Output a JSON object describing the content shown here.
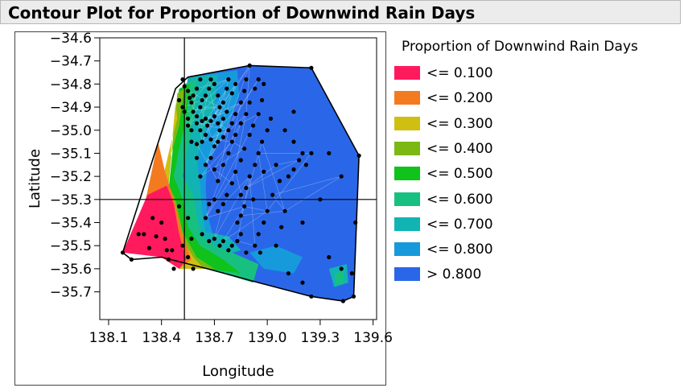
{
  "title": "Contour Plot for Proportion of Downwind Rain Days",
  "chart_data": {
    "type": "contour",
    "xlabel": "Longitude",
    "ylabel": "Latitude",
    "xlim": [
      138.05,
      139.62
    ],
    "ylim": [
      -35.82,
      -34.6
    ],
    "x_ticks": [
      "138.1",
      "138.4",
      "138.7",
      "139.0",
      "139.3",
      "139.6"
    ],
    "y_ticks": [
      "-34.6",
      "-34.7",
      "-34.8",
      "-34.9",
      "-35.0",
      "-35.1",
      "-35.2",
      "-35.3",
      "-35.4",
      "-35.5",
      "-35.6",
      "-35.7"
    ],
    "crosshair": {
      "x": 138.53,
      "y": -35.3
    },
    "legend_title": "Proportion of Downwind Rain Days",
    "legend": [
      {
        "label": "<= 0.100",
        "color": "#ff1a5e"
      },
      {
        "label": "<= 0.200",
        "color": "#f47a1f"
      },
      {
        "label": "<= 0.300",
        "color": "#cfbf12"
      },
      {
        "label": "<= 0.400",
        "color": "#7cb814"
      },
      {
        "label": "<= 0.500",
        "color": "#0fc21c"
      },
      {
        "label": "<= 0.600",
        "color": "#18c080"
      },
      {
        "label": "<= 0.700",
        "color": "#12b3b3"
      },
      {
        "label": "<= 0.800",
        "color": "#169adc"
      },
      {
        "label": "> 0.800",
        "color": "#2a67e8"
      }
    ],
    "regions": [
      {
        "level": "> 0.800",
        "polygon": [
          [
            138.55,
            -34.77
          ],
          [
            138.9,
            -34.72
          ],
          [
            139.25,
            -34.73
          ],
          [
            139.52,
            -35.11
          ],
          [
            139.49,
            -35.72
          ],
          [
            139.43,
            -35.74
          ],
          [
            139.25,
            -35.72
          ],
          [
            138.95,
            -35.66
          ],
          [
            138.66,
            -35.6
          ],
          [
            138.4,
            -35.55
          ]
        ]
      },
      {
        "level": "<= 0.800",
        "polygon": [
          [
            138.55,
            -34.77
          ],
          [
            138.83,
            -34.74
          ],
          [
            138.84,
            -34.85
          ],
          [
            138.78,
            -34.97
          ],
          [
            138.72,
            -35.06
          ],
          [
            138.66,
            -35.14
          ],
          [
            138.65,
            -35.25
          ],
          [
            138.66,
            -35.36
          ],
          [
            138.7,
            -35.48
          ],
          [
            138.5,
            -35.6
          ]
        ]
      },
      {
        "level": "<= 0.800",
        "polygon": [
          [
            138.9,
            -35.53
          ],
          [
            139.05,
            -35.5
          ],
          [
            139.2,
            -35.55
          ],
          [
            139.15,
            -35.62
          ],
          [
            138.98,
            -35.6
          ]
        ]
      },
      {
        "level": "<= 0.700",
        "polygon": [
          [
            138.55,
            -34.77
          ],
          [
            138.72,
            -34.76
          ],
          [
            138.7,
            -34.9
          ],
          [
            138.64,
            -35.02
          ],
          [
            138.6,
            -35.12
          ],
          [
            138.62,
            -35.25
          ],
          [
            138.63,
            -35.35
          ],
          [
            138.65,
            -35.44
          ],
          [
            138.78,
            -35.46
          ],
          [
            138.85,
            -35.52
          ],
          [
            138.5,
            -35.6
          ]
        ]
      },
      {
        "level": "<= 0.700",
        "polygon": [
          [
            139.35,
            -35.6
          ],
          [
            139.45,
            -35.58
          ],
          [
            139.46,
            -35.66
          ],
          [
            139.38,
            -35.68
          ]
        ]
      },
      {
        "level": "<= 0.600",
        "polygon": [
          [
            138.53,
            -34.8
          ],
          [
            138.6,
            -34.78
          ],
          [
            138.58,
            -34.95
          ],
          [
            138.55,
            -35.08
          ],
          [
            138.52,
            -35.2
          ],
          [
            138.58,
            -35.28
          ],
          [
            138.6,
            -35.37
          ],
          [
            138.62,
            -35.45
          ],
          [
            138.7,
            -35.5
          ],
          [
            138.8,
            -35.53
          ],
          [
            138.95,
            -35.58
          ],
          [
            138.92,
            -35.66
          ],
          [
            138.66,
            -35.6
          ],
          [
            138.4,
            -35.55
          ]
        ]
      },
      {
        "level": "<= 0.600",
        "polygon": [
          [
            139.38,
            -35.62
          ],
          [
            139.43,
            -35.61
          ],
          [
            139.44,
            -35.66
          ],
          [
            139.39,
            -35.67
          ]
        ]
      },
      {
        "level": "<= 0.500",
        "polygon": [
          [
            138.5,
            -34.82
          ],
          [
            138.56,
            -34.8
          ],
          [
            138.54,
            -34.95
          ],
          [
            138.5,
            -35.08
          ],
          [
            138.47,
            -35.2
          ],
          [
            138.52,
            -35.3
          ],
          [
            138.55,
            -35.42
          ],
          [
            138.62,
            -35.5
          ],
          [
            138.75,
            -35.56
          ],
          [
            138.85,
            -35.62
          ],
          [
            138.66,
            -35.6
          ],
          [
            138.4,
            -35.55
          ]
        ]
      },
      {
        "level": "<= 0.400",
        "polygon": [
          [
            138.49,
            -34.84
          ],
          [
            138.53,
            -34.82
          ],
          [
            138.5,
            -34.98
          ],
          [
            138.45,
            -35.12
          ],
          [
            138.43,
            -35.22
          ],
          [
            138.48,
            -35.3
          ],
          [
            138.52,
            -35.44
          ],
          [
            138.6,
            -35.55
          ],
          [
            138.7,
            -35.6
          ],
          [
            138.5,
            -35.6
          ],
          [
            138.4,
            -35.55
          ]
        ]
      },
      {
        "level": "<= 0.300",
        "polygon": [
          [
            138.48,
            -34.88
          ],
          [
            138.49,
            -34.95
          ],
          [
            138.44,
            -35.1
          ],
          [
            138.41,
            -35.2
          ],
          [
            138.45,
            -35.3
          ],
          [
            138.5,
            -35.45
          ],
          [
            138.58,
            -35.55
          ],
          [
            138.64,
            -35.6
          ],
          [
            138.5,
            -35.6
          ],
          [
            138.4,
            -35.55
          ]
        ]
      },
      {
        "level": "<= 0.200",
        "polygon": [
          [
            138.38,
            -35.05
          ],
          [
            138.42,
            -35.18
          ],
          [
            138.47,
            -35.3
          ],
          [
            138.52,
            -35.45
          ],
          [
            138.57,
            -35.56
          ],
          [
            138.5,
            -35.6
          ],
          [
            138.4,
            -35.55
          ],
          [
            138.25,
            -35.52
          ]
        ]
      },
      {
        "level": "<= 0.100",
        "polygon": [
          [
            138.32,
            -35.28
          ],
          [
            138.43,
            -35.24
          ],
          [
            138.47,
            -35.32
          ],
          [
            138.5,
            -35.45
          ],
          [
            138.54,
            -35.56
          ],
          [
            138.5,
            -35.6
          ],
          [
            138.4,
            -35.55
          ],
          [
            138.18,
            -35.53
          ]
        ]
      }
    ],
    "boundary": [
      [
        138.18,
        -35.53
      ],
      [
        138.48,
        -34.82
      ],
      [
        138.55,
        -34.77
      ],
      [
        138.9,
        -34.72
      ],
      [
        139.25,
        -34.73
      ],
      [
        139.52,
        -35.11
      ],
      [
        139.49,
        -35.72
      ],
      [
        139.43,
        -35.74
      ],
      [
        139.25,
        -35.72
      ],
      [
        138.95,
        -35.66
      ],
      [
        138.66,
        -35.6
      ],
      [
        138.4,
        -35.55
      ],
      [
        138.23,
        -35.56
      ]
    ],
    "points": [
      [
        138.18,
        -35.53
      ],
      [
        138.23,
        -35.56
      ],
      [
        138.27,
        -35.45
      ],
      [
        138.3,
        -35.45
      ],
      [
        138.33,
        -35.51
      ],
      [
        138.35,
        -35.38
      ],
      [
        138.37,
        -35.46
      ],
      [
        138.4,
        -35.4
      ],
      [
        138.42,
        -35.47
      ],
      [
        138.43,
        -35.52
      ],
      [
        138.44,
        -35.56
      ],
      [
        138.46,
        -35.52
      ],
      [
        138.47,
        -35.6
      ],
      [
        138.52,
        -35.5
      ],
      [
        138.55,
        -35.55
      ],
      [
        138.58,
        -35.6
      ],
      [
        138.5,
        -35.33
      ],
      [
        138.55,
        -35.38
      ],
      [
        138.57,
        -35.47
      ],
      [
        138.52,
        -34.78
      ],
      [
        138.53,
        -34.81
      ],
      [
        138.55,
        -34.83
      ],
      [
        138.56,
        -34.86
      ],
      [
        138.58,
        -34.85
      ],
      [
        138.6,
        -34.82
      ],
      [
        138.62,
        -34.78
      ],
      [
        138.5,
        -34.87
      ],
      [
        138.52,
        -34.9
      ],
      [
        138.53,
        -34.92
      ],
      [
        138.55,
        -34.95
      ],
      [
        138.57,
        -34.88
      ],
      [
        138.58,
        -34.92
      ],
      [
        138.6,
        -34.94
      ],
      [
        138.62,
        -34.9
      ],
      [
        138.63,
        -34.87
      ],
      [
        138.65,
        -34.85
      ],
      [
        138.67,
        -34.82
      ],
      [
        138.68,
        -34.78
      ],
      [
        138.7,
        -34.8
      ],
      [
        138.72,
        -34.85
      ],
      [
        138.73,
        -34.9
      ],
      [
        138.75,
        -34.88
      ],
      [
        138.77,
        -34.82
      ],
      [
        138.78,
        -34.78
      ],
      [
        138.8,
        -34.84
      ],
      [
        138.82,
        -34.8
      ],
      [
        138.55,
        -34.98
      ],
      [
        138.57,
        -35.0
      ],
      [
        138.6,
        -34.97
      ],
      [
        138.62,
        -35.0
      ],
      [
        138.63,
        -34.96
      ],
      [
        138.65,
        -34.95
      ],
      [
        138.66,
        -34.98
      ],
      [
        138.68,
        -34.96
      ],
      [
        138.7,
        -34.94
      ],
      [
        138.72,
        -34.97
      ],
      [
        138.73,
        -35.0
      ],
      [
        138.75,
        -34.95
      ],
      [
        138.77,
        -34.92
      ],
      [
        138.57,
        -35.05
      ],
      [
        138.6,
        -35.06
      ],
      [
        138.63,
        -35.05
      ],
      [
        138.65,
        -35.02
      ],
      [
        138.68,
        -35.04
      ],
      [
        138.7,
        -35.07
      ],
      [
        138.72,
        -35.05
      ],
      [
        138.75,
        -35.03
      ],
      [
        138.78,
        -35.0
      ],
      [
        138.8,
        -34.97
      ],
      [
        138.82,
        -34.93
      ],
      [
        138.85,
        -34.88
      ],
      [
        138.87,
        -34.83
      ],
      [
        138.88,
        -34.78
      ],
      [
        138.9,
        -34.72
      ],
      [
        138.6,
        -35.12
      ],
      [
        138.62,
        -35.2
      ],
      [
        138.65,
        -35.15
      ],
      [
        138.68,
        -35.12
      ],
      [
        138.7,
        -35.17
      ],
      [
        138.72,
        -35.22
      ],
      [
        138.75,
        -35.15
      ],
      [
        138.78,
        -35.1
      ],
      [
        138.8,
        -35.05
      ],
      [
        138.82,
        -35.02
      ],
      [
        138.85,
        -34.97
      ],
      [
        138.88,
        -34.93
      ],
      [
        138.9,
        -34.88
      ],
      [
        138.93,
        -34.82
      ],
      [
        138.95,
        -34.78
      ],
      [
        138.98,
        -34.8
      ],
      [
        138.97,
        -34.87
      ],
      [
        138.95,
        -34.93
      ],
      [
        138.92,
        -34.98
      ],
      [
        138.9,
        -35.02
      ],
      [
        138.87,
        -35.08
      ],
      [
        138.85,
        -35.13
      ],
      [
        138.82,
        -35.18
      ],
      [
        138.8,
        -35.23
      ],
      [
        138.77,
        -35.28
      ],
      [
        138.75,
        -35.32
      ],
      [
        138.72,
        -35.35
      ],
      [
        138.7,
        -35.3
      ],
      [
        138.67,
        -35.32
      ],
      [
        138.65,
        -35.38
      ],
      [
        138.63,
        -35.45
      ],
      [
        138.67,
        -35.48
      ],
      [
        138.7,
        -35.47
      ],
      [
        138.73,
        -35.5
      ],
      [
        138.75,
        -35.48
      ],
      [
        138.78,
        -35.52
      ],
      [
        138.8,
        -35.5
      ],
      [
        138.83,
        -35.48
      ],
      [
        138.85,
        -35.45
      ],
      [
        138.83,
        -35.4
      ],
      [
        138.85,
        -35.37
      ],
      [
        138.87,
        -35.33
      ],
      [
        138.85,
        -35.28
      ],
      [
        138.88,
        -35.25
      ],
      [
        138.9,
        -35.2
      ],
      [
        138.93,
        -35.15
      ],
      [
        138.95,
        -35.1
      ],
      [
        138.97,
        -35.05
      ],
      [
        139.0,
        -35.0
      ],
      [
        139.02,
        -34.95
      ],
      [
        139.05,
        -35.15
      ],
      [
        139.07,
        -35.22
      ],
      [
        139.03,
        -35.28
      ],
      [
        139.0,
        -35.35
      ],
      [
        138.98,
        -35.4
      ],
      [
        138.95,
        -35.45
      ],
      [
        138.93,
        -35.5
      ],
      [
        139.05,
        -35.5
      ],
      [
        139.08,
        -35.42
      ],
      [
        139.1,
        -35.35
      ],
      [
        139.12,
        -35.2
      ],
      [
        139.15,
        -35.17
      ],
      [
        139.18,
        -35.13
      ],
      [
        139.2,
        -35.1
      ],
      [
        139.22,
        -35.15
      ],
      [
        139.25,
        -35.1
      ],
      [
        139.15,
        -35.05
      ],
      [
        139.1,
        -35.0
      ],
      [
        139.15,
        -34.92
      ],
      [
        139.25,
        -34.73
      ],
      [
        139.35,
        -35.1
      ],
      [
        139.42,
        -35.2
      ],
      [
        139.3,
        -35.3
      ],
      [
        139.35,
        -35.55
      ],
      [
        139.42,
        -35.6
      ],
      [
        139.48,
        -35.62
      ],
      [
        139.2,
        -35.66
      ],
      [
        139.25,
        -35.72
      ],
      [
        139.43,
        -35.74
      ],
      [
        139.49,
        -35.72
      ],
      [
        139.5,
        -35.4
      ],
      [
        139.52,
        -35.11
      ],
      [
        138.96,
        -35.53
      ],
      [
        139.12,
        -35.62
      ],
      [
        139.2,
        -35.4
      ],
      [
        138.88,
        -35.53
      ],
      [
        138.98,
        -35.18
      ],
      [
        138.92,
        -35.3
      ]
    ]
  }
}
